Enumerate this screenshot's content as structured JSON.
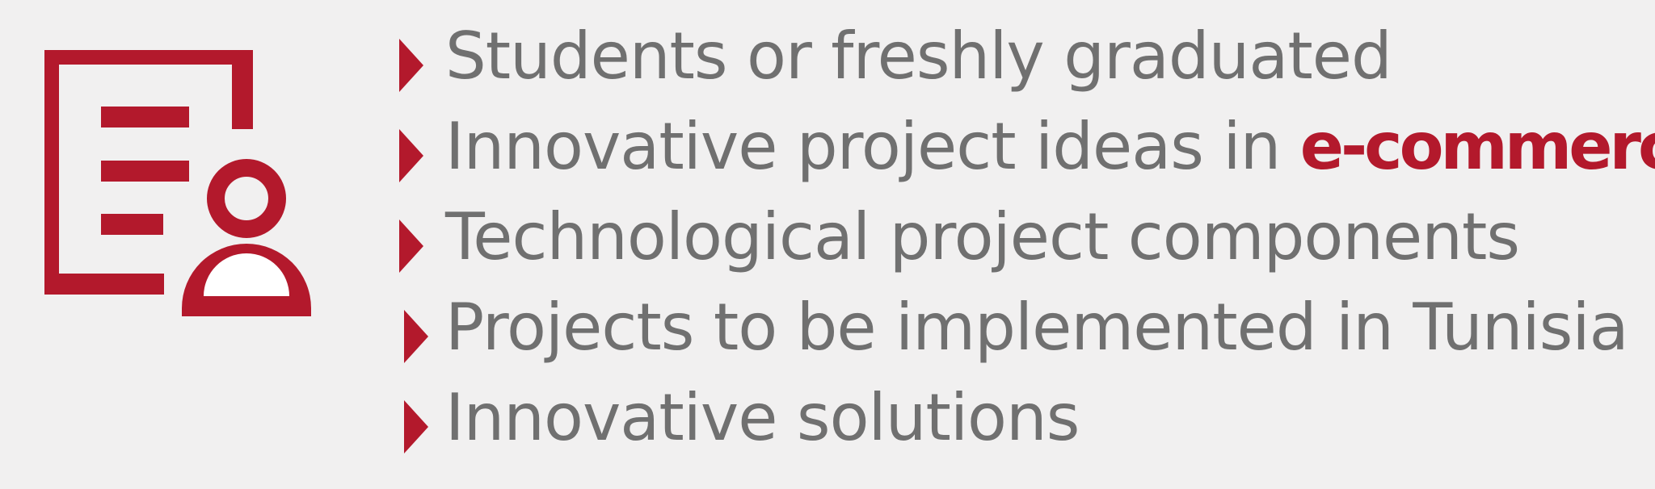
{
  "colors": {
    "accent": "#b3192c",
    "text": "#707070",
    "background": "#f1f0f0"
  },
  "logo": {
    "icon": "document-user-icon"
  },
  "items": [
    {
      "text": "Students or freshly graduated",
      "highlight": ""
    },
    {
      "text": "Innovative project ideas in ",
      "highlight": "e-commerce"
    },
    {
      "text": "Technological project components",
      "highlight": ""
    },
    {
      "text": "Projects to be implemented in Tunisia",
      "highlight": ""
    },
    {
      "text": "Innovative solutions",
      "highlight": ""
    }
  ]
}
